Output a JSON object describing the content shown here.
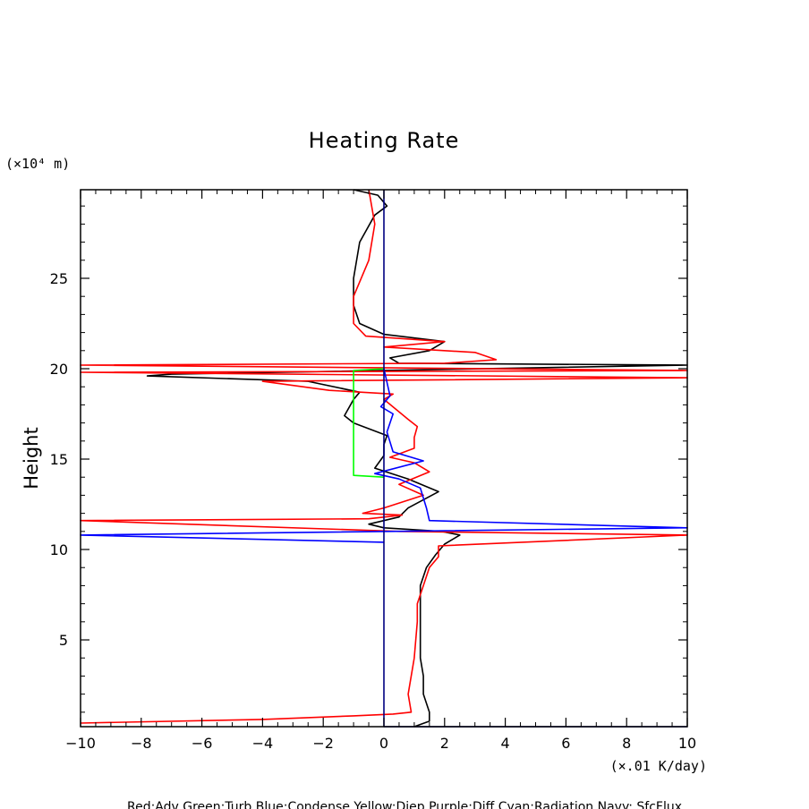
{
  "chart_data": {
    "type": "line",
    "title": "Heating Rate",
    "ylabel": "Height",
    "y_units": "(×10⁴ m)",
    "x_units": "(×.01 K/day)",
    "xlim": [
      -10,
      10
    ],
    "ylim": [
      0.2,
      29.9
    ],
    "x_ticks": [
      "−10",
      "−8",
      "−6",
      "−4",
      "−2",
      "0",
      "2",
      "4",
      "6",
      "8",
      "10"
    ],
    "y_ticks": [
      "5",
      "10",
      "15",
      "20",
      "25"
    ],
    "legend_text": "Red:Adv  Green:Turb  Blue:Condense  Yellow:Diep  Purple:Diff  Cyan:Radiation  Navy: SfcFlux",
    "colors": {
      "black": "#000000",
      "red": "#ff0000",
      "green": "#00ff00",
      "blue": "#0000ff",
      "navy": "#000080"
    },
    "series": [
      {
        "color": "black",
        "points": [
          [
            1.0,
            0.2
          ],
          [
            1.5,
            0.5
          ],
          [
            1.5,
            1.0
          ],
          [
            1.3,
            2.0
          ],
          [
            1.3,
            3.0
          ],
          [
            1.2,
            4.0
          ],
          [
            1.2,
            5.0
          ],
          [
            1.2,
            6.0
          ],
          [
            1.2,
            7.0
          ],
          [
            1.2,
            8.0
          ],
          [
            1.4,
            9.0
          ],
          [
            1.7,
            9.7
          ],
          [
            2.0,
            10.3
          ],
          [
            2.5,
            10.8
          ],
          [
            1.9,
            11.0
          ],
          [
            0.0,
            11.2
          ],
          [
            -0.5,
            11.4
          ],
          [
            0.5,
            11.8
          ],
          [
            0.8,
            12.3
          ],
          [
            1.8,
            13.2
          ],
          [
            0.8,
            13.9
          ],
          [
            -0.3,
            14.5
          ],
          [
            0.0,
            15.2
          ],
          [
            0.0,
            15.8
          ],
          [
            0.1,
            16.3
          ],
          [
            -1.0,
            17.0
          ],
          [
            -1.3,
            17.4
          ],
          [
            -1.0,
            18.3
          ],
          [
            -0.8,
            18.7
          ],
          [
            -2.5,
            19.3
          ],
          [
            -7.8,
            19.6
          ],
          [
            -7.0,
            19.7
          ],
          [
            10.0,
            20.2
          ],
          [
            0.5,
            20.3
          ],
          [
            0.2,
            20.6
          ],
          [
            1.5,
            21.0
          ],
          [
            2.0,
            21.5
          ],
          [
            0.0,
            21.9
          ],
          [
            -0.8,
            22.5
          ],
          [
            -1.0,
            23.5
          ],
          [
            -1.0,
            25.0
          ],
          [
            -0.8,
            27.0
          ],
          [
            -0.3,
            28.5
          ],
          [
            0.1,
            29.0
          ],
          [
            -0.2,
            29.6
          ],
          [
            -1.0,
            29.9
          ]
        ]
      },
      {
        "color": "red",
        "points": [
          [
            -10.0,
            0.4
          ],
          [
            -4.0,
            0.6
          ],
          [
            -1.0,
            0.8
          ],
          [
            0.3,
            0.9
          ],
          [
            0.9,
            1.0
          ],
          [
            0.8,
            2.0
          ],
          [
            1.0,
            4.0
          ],
          [
            1.1,
            6.0
          ],
          [
            1.1,
            7.0
          ],
          [
            1.3,
            8.0
          ],
          [
            1.5,
            9.0
          ],
          [
            1.8,
            9.6
          ],
          [
            1.8,
            10.2
          ],
          [
            10.0,
            10.8
          ],
          [
            0.5,
            11.0
          ],
          [
            -10.0,
            11.6
          ],
          [
            -0.5,
            11.7
          ],
          [
            0.6,
            11.9
          ],
          [
            -0.7,
            12.0
          ],
          [
            0.0,
            12.3
          ],
          [
            1.3,
            13.0
          ],
          [
            0.5,
            13.6
          ],
          [
            1.5,
            14.3
          ],
          [
            1.0,
            14.8
          ],
          [
            0.2,
            15.1
          ],
          [
            1.0,
            15.6
          ],
          [
            1.0,
            16.2
          ],
          [
            1.1,
            16.8
          ],
          [
            0.8,
            17.2
          ],
          [
            0.0,
            18.3
          ],
          [
            0.3,
            18.6
          ],
          [
            -1.8,
            18.8
          ],
          [
            -4.0,
            19.3
          ],
          [
            10.0,
            19.5
          ],
          [
            -10.0,
            19.8
          ],
          [
            10.0,
            19.9
          ],
          [
            -10.0,
            20.2
          ],
          [
            2.0,
            20.3
          ],
          [
            3.7,
            20.5
          ],
          [
            3.0,
            20.9
          ],
          [
            0.0,
            21.2
          ],
          [
            2.0,
            21.5
          ],
          [
            -0.6,
            21.8
          ],
          [
            -1.0,
            22.5
          ],
          [
            -1.0,
            24.0
          ],
          [
            -0.5,
            26.0
          ],
          [
            -0.3,
            28.0
          ],
          [
            -0.5,
            29.9
          ]
        ]
      },
      {
        "color": "green",
        "points": [
          [
            0.0,
            14.0
          ],
          [
            -1.0,
            14.1
          ],
          [
            -1.0,
            19.9
          ],
          [
            0.0,
            20.0
          ]
        ]
      },
      {
        "color": "blue",
        "points": [
          [
            0.0,
            10.4
          ],
          [
            -10.0,
            10.8
          ],
          [
            10.0,
            11.2
          ],
          [
            1.5,
            11.6
          ],
          [
            1.4,
            12.3
          ],
          [
            1.2,
            13.4
          ],
          [
            0.5,
            13.9
          ],
          [
            -0.3,
            14.2
          ],
          [
            1.3,
            14.9
          ],
          [
            0.3,
            15.4
          ],
          [
            0.1,
            16.5
          ],
          [
            0.3,
            17.5
          ],
          [
            -0.1,
            17.9
          ],
          [
            0.2,
            18.5
          ],
          [
            0.0,
            20.0
          ]
        ]
      },
      {
        "color": "navy",
        "points": [
          [
            0.0,
            29.9
          ],
          [
            0.0,
            0.2
          ],
          [
            10.0,
            0.2
          ]
        ]
      }
    ]
  }
}
